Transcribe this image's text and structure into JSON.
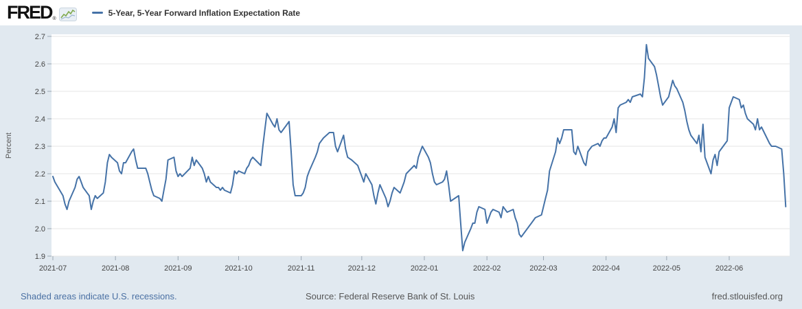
{
  "header": {
    "logo_text": "FRED",
    "registered_mark": "®",
    "legend_label": "5-Year, 5-Year Forward Inflation Expectation Rate"
  },
  "footer": {
    "recession_note": "Shaded areas indicate U.S. recessions.",
    "source": "Source: Federal Reserve Bank of St. Louis",
    "site": "fred.stlouisfed.org"
  },
  "colors": {
    "background": "#e1e9f0",
    "plot_background": "#ffffff",
    "line": "#4572a7",
    "gridline": "#e6e6e6",
    "tick": "#9aa6b2",
    "axis_text": "#444444",
    "link": "#4a70a3",
    "source_text": "#555555"
  },
  "chart_data": {
    "type": "line",
    "title": "5-Year, 5-Year Forward Inflation Expectation Rate",
    "xlabel": "",
    "ylabel": "Percent",
    "ylim": [
      1.9,
      2.7
    ],
    "grid": true,
    "legend_position": "top-left-header",
    "y_ticks": [
      1.9,
      2.0,
      2.1,
      2.2,
      2.3,
      2.4,
      2.5,
      2.6,
      2.7
    ],
    "x_ticks": [
      {
        "label": "2021-07",
        "day": 0
      },
      {
        "label": "2021-08",
        "day": 31
      },
      {
        "label": "2021-09",
        "day": 62
      },
      {
        "label": "2021-10",
        "day": 92
      },
      {
        "label": "2021-11",
        "day": 123
      },
      {
        "label": "2021-12",
        "day": 153
      },
      {
        "label": "2022-01",
        "day": 184
      },
      {
        "label": "2022-02",
        "day": 215
      },
      {
        "label": "2022-03",
        "day": 243
      },
      {
        "label": "2022-04",
        "day": 274
      },
      {
        "label": "2022-05",
        "day": 304
      },
      {
        "label": "2022-06",
        "day": 335
      }
    ],
    "start_date": "2021-07-01",
    "points": [
      [
        "2021-07-01",
        2.19
      ],
      [
        "2021-07-02",
        2.17
      ],
      [
        "2021-07-06",
        2.12
      ],
      [
        "2021-07-07",
        2.09
      ],
      [
        "2021-07-08",
        2.07
      ],
      [
        "2021-07-09",
        2.1
      ],
      [
        "2021-07-12",
        2.15
      ],
      [
        "2021-07-13",
        2.18
      ],
      [
        "2021-07-14",
        2.19
      ],
      [
        "2021-07-15",
        2.17
      ],
      [
        "2021-07-16",
        2.15
      ],
      [
        "2021-07-19",
        2.12
      ],
      [
        "2021-07-20",
        2.07
      ],
      [
        "2021-07-21",
        2.1
      ],
      [
        "2021-07-22",
        2.12
      ],
      [
        "2021-07-23",
        2.11
      ],
      [
        "2021-07-26",
        2.13
      ],
      [
        "2021-07-27",
        2.17
      ],
      [
        "2021-07-28",
        2.24
      ],
      [
        "2021-07-29",
        2.27
      ],
      [
        "2021-07-30",
        2.26
      ],
      [
        "2021-08-02",
        2.24
      ],
      [
        "2021-08-03",
        2.21
      ],
      [
        "2021-08-04",
        2.2
      ],
      [
        "2021-08-05",
        2.24
      ],
      [
        "2021-08-06",
        2.24
      ],
      [
        "2021-08-09",
        2.28
      ],
      [
        "2021-08-10",
        2.29
      ],
      [
        "2021-08-11",
        2.25
      ],
      [
        "2021-08-12",
        2.22
      ],
      [
        "2021-08-13",
        2.22
      ],
      [
        "2021-08-16",
        2.22
      ],
      [
        "2021-08-17",
        2.2
      ],
      [
        "2021-08-18",
        2.17
      ],
      [
        "2021-08-19",
        2.14
      ],
      [
        "2021-08-20",
        2.12
      ],
      [
        "2021-08-23",
        2.11
      ],
      [
        "2021-08-24",
        2.1
      ],
      [
        "2021-08-25",
        2.14
      ],
      [
        "2021-08-26",
        2.18
      ],
      [
        "2021-08-27",
        2.25
      ],
      [
        "2021-08-30",
        2.26
      ],
      [
        "2021-08-31",
        2.21
      ],
      [
        "2021-09-01",
        2.19
      ],
      [
        "2021-09-02",
        2.2
      ],
      [
        "2021-09-03",
        2.19
      ],
      [
        "2021-09-07",
        2.22
      ],
      [
        "2021-09-08",
        2.26
      ],
      [
        "2021-09-09",
        2.23
      ],
      [
        "2021-09-10",
        2.25
      ],
      [
        "2021-09-13",
        2.22
      ],
      [
        "2021-09-14",
        2.2
      ],
      [
        "2021-09-15",
        2.17
      ],
      [
        "2021-09-16",
        2.19
      ],
      [
        "2021-09-17",
        2.17
      ],
      [
        "2021-09-20",
        2.15
      ],
      [
        "2021-09-21",
        2.15
      ],
      [
        "2021-09-22",
        2.14
      ],
      [
        "2021-09-23",
        2.15
      ],
      [
        "2021-09-24",
        2.14
      ],
      [
        "2021-09-27",
        2.13
      ],
      [
        "2021-09-28",
        2.16
      ],
      [
        "2021-09-29",
        2.21
      ],
      [
        "2021-09-30",
        2.2
      ],
      [
        "2021-10-01",
        2.21
      ],
      [
        "2021-10-04",
        2.2
      ],
      [
        "2021-10-05",
        2.22
      ],
      [
        "2021-10-06",
        2.23
      ],
      [
        "2021-10-07",
        2.25
      ],
      [
        "2021-10-08",
        2.26
      ],
      [
        "2021-10-12",
        2.23
      ],
      [
        "2021-10-13",
        2.3
      ],
      [
        "2021-10-14",
        2.36
      ],
      [
        "2021-10-15",
        2.42
      ],
      [
        "2021-10-18",
        2.38
      ],
      [
        "2021-10-19",
        2.37
      ],
      [
        "2021-10-20",
        2.4
      ],
      [
        "2021-10-21",
        2.36
      ],
      [
        "2021-10-22",
        2.35
      ],
      [
        "2021-10-25",
        2.38
      ],
      [
        "2021-10-26",
        2.39
      ],
      [
        "2021-10-27",
        2.28
      ],
      [
        "2021-10-28",
        2.16
      ],
      [
        "2021-10-29",
        2.12
      ],
      [
        "2021-11-01",
        2.12
      ],
      [
        "2021-11-02",
        2.13
      ],
      [
        "2021-11-03",
        2.15
      ],
      [
        "2021-11-04",
        2.19
      ],
      [
        "2021-11-05",
        2.21
      ],
      [
        "2021-11-08",
        2.26
      ],
      [
        "2021-11-09",
        2.28
      ],
      [
        "2021-11-10",
        2.31
      ],
      [
        "2021-11-12",
        2.33
      ],
      [
        "2021-11-15",
        2.35
      ],
      [
        "2021-11-16",
        2.35
      ],
      [
        "2021-11-17",
        2.35
      ],
      [
        "2021-11-18",
        2.3
      ],
      [
        "2021-11-19",
        2.28
      ],
      [
        "2021-11-22",
        2.34
      ],
      [
        "2021-11-23",
        2.29
      ],
      [
        "2021-11-24",
        2.26
      ],
      [
        "2021-11-26",
        2.25
      ],
      [
        "2021-11-29",
        2.23
      ],
      [
        "2021-11-30",
        2.21
      ],
      [
        "2021-12-01",
        2.19
      ],
      [
        "2021-12-02",
        2.17
      ],
      [
        "2021-12-03",
        2.2
      ],
      [
        "2021-12-06",
        2.16
      ],
      [
        "2021-12-07",
        2.12
      ],
      [
        "2021-12-08",
        2.09
      ],
      [
        "2021-12-09",
        2.13
      ],
      [
        "2021-12-10",
        2.16
      ],
      [
        "2021-12-13",
        2.11
      ],
      [
        "2021-12-14",
        2.08
      ],
      [
        "2021-12-15",
        2.1
      ],
      [
        "2021-12-16",
        2.13
      ],
      [
        "2021-12-17",
        2.15
      ],
      [
        "2021-12-20",
        2.13
      ],
      [
        "2021-12-21",
        2.15
      ],
      [
        "2021-12-22",
        2.17
      ],
      [
        "2021-12-23",
        2.2
      ],
      [
        "2021-12-27",
        2.23
      ],
      [
        "2021-12-28",
        2.22
      ],
      [
        "2021-12-29",
        2.26
      ],
      [
        "2021-12-30",
        2.28
      ],
      [
        "2021-12-31",
        2.3
      ],
      [
        "2022-01-03",
        2.26
      ],
      [
        "2022-01-04",
        2.24
      ],
      [
        "2022-01-05",
        2.2
      ],
      [
        "2022-01-06",
        2.17
      ],
      [
        "2022-01-07",
        2.16
      ],
      [
        "2022-01-10",
        2.17
      ],
      [
        "2022-01-11",
        2.18
      ],
      [
        "2022-01-12",
        2.21
      ],
      [
        "2022-01-13",
        2.16
      ],
      [
        "2022-01-14",
        2.1
      ],
      [
        "2022-01-18",
        2.12
      ],
      [
        "2022-01-19",
        2.02
      ],
      [
        "2022-01-20",
        1.92
      ],
      [
        "2022-01-21",
        1.95
      ],
      [
        "2022-01-24",
        2.0
      ],
      [
        "2022-01-25",
        2.02
      ],
      [
        "2022-01-26",
        2.02
      ],
      [
        "2022-01-27",
        2.06
      ],
      [
        "2022-01-28",
        2.08
      ],
      [
        "2022-01-31",
        2.07
      ],
      [
        "2022-02-01",
        2.02
      ],
      [
        "2022-02-02",
        2.04
      ],
      [
        "2022-02-03",
        2.06
      ],
      [
        "2022-02-04",
        2.07
      ],
      [
        "2022-02-07",
        2.06
      ],
      [
        "2022-02-08",
        2.04
      ],
      [
        "2022-02-09",
        2.08
      ],
      [
        "2022-02-10",
        2.07
      ],
      [
        "2022-02-11",
        2.06
      ],
      [
        "2022-02-14",
        2.07
      ],
      [
        "2022-02-15",
        2.04
      ],
      [
        "2022-02-16",
        2.02
      ],
      [
        "2022-02-17",
        1.98
      ],
      [
        "2022-02-18",
        1.97
      ],
      [
        "2022-02-22",
        2.01
      ],
      [
        "2022-02-23",
        2.02
      ],
      [
        "2022-02-24",
        2.03
      ],
      [
        "2022-02-25",
        2.04
      ],
      [
        "2022-02-28",
        2.05
      ],
      [
        "2022-03-01",
        2.08
      ],
      [
        "2022-03-02",
        2.11
      ],
      [
        "2022-03-03",
        2.14
      ],
      [
        "2022-03-04",
        2.21
      ],
      [
        "2022-03-07",
        2.28
      ],
      [
        "2022-03-08",
        2.33
      ],
      [
        "2022-03-09",
        2.31
      ],
      [
        "2022-03-10",
        2.33
      ],
      [
        "2022-03-11",
        2.36
      ],
      [
        "2022-03-14",
        2.36
      ],
      [
        "2022-03-15",
        2.36
      ],
      [
        "2022-03-16",
        2.28
      ],
      [
        "2022-03-17",
        2.27
      ],
      [
        "2022-03-18",
        2.3
      ],
      [
        "2022-03-21",
        2.24
      ],
      [
        "2022-03-22",
        2.23
      ],
      [
        "2022-03-23",
        2.28
      ],
      [
        "2022-03-24",
        2.29
      ],
      [
        "2022-03-25",
        2.3
      ],
      [
        "2022-03-28",
        2.31
      ],
      [
        "2022-03-29",
        2.3
      ],
      [
        "2022-03-30",
        2.32
      ],
      [
        "2022-03-31",
        2.33
      ],
      [
        "2022-04-01",
        2.33
      ],
      [
        "2022-04-04",
        2.37
      ],
      [
        "2022-04-05",
        2.4
      ],
      [
        "2022-04-06",
        2.35
      ],
      [
        "2022-04-07",
        2.44
      ],
      [
        "2022-04-08",
        2.45
      ],
      [
        "2022-04-11",
        2.46
      ],
      [
        "2022-04-12",
        2.47
      ],
      [
        "2022-04-13",
        2.46
      ],
      [
        "2022-04-14",
        2.48
      ],
      [
        "2022-04-18",
        2.49
      ],
      [
        "2022-04-19",
        2.48
      ],
      [
        "2022-04-20",
        2.55
      ],
      [
        "2022-04-21",
        2.67
      ],
      [
        "2022-04-22",
        2.62
      ],
      [
        "2022-04-25",
        2.59
      ],
      [
        "2022-04-26",
        2.56
      ],
      [
        "2022-04-27",
        2.52
      ],
      [
        "2022-04-28",
        2.48
      ],
      [
        "2022-04-29",
        2.45
      ],
      [
        "2022-05-02",
        2.48
      ],
      [
        "2022-05-03",
        2.51
      ],
      [
        "2022-05-04",
        2.54
      ],
      [
        "2022-05-05",
        2.52
      ],
      [
        "2022-05-06",
        2.51
      ],
      [
        "2022-05-09",
        2.46
      ],
      [
        "2022-05-10",
        2.43
      ],
      [
        "2022-05-11",
        2.39
      ],
      [
        "2022-05-12",
        2.36
      ],
      [
        "2022-05-13",
        2.34
      ],
      [
        "2022-05-16",
        2.31
      ],
      [
        "2022-05-17",
        2.34
      ],
      [
        "2022-05-18",
        2.28
      ],
      [
        "2022-05-19",
        2.38
      ],
      [
        "2022-05-20",
        2.26
      ],
      [
        "2022-05-23",
        2.2
      ],
      [
        "2022-05-24",
        2.25
      ],
      [
        "2022-05-25",
        2.27
      ],
      [
        "2022-05-26",
        2.23
      ],
      [
        "2022-05-27",
        2.28
      ],
      [
        "2022-05-31",
        2.32
      ],
      [
        "2022-06-01",
        2.44
      ],
      [
        "2022-06-02",
        2.46
      ],
      [
        "2022-06-03",
        2.48
      ],
      [
        "2022-06-06",
        2.47
      ],
      [
        "2022-06-07",
        2.44
      ],
      [
        "2022-06-08",
        2.45
      ],
      [
        "2022-06-09",
        2.42
      ],
      [
        "2022-06-10",
        2.4
      ],
      [
        "2022-06-13",
        2.38
      ],
      [
        "2022-06-14",
        2.36
      ],
      [
        "2022-06-15",
        2.4
      ],
      [
        "2022-06-16",
        2.36
      ],
      [
        "2022-06-17",
        2.37
      ],
      [
        "2022-06-21",
        2.31
      ],
      [
        "2022-06-22",
        2.3
      ],
      [
        "2022-06-23",
        2.3
      ],
      [
        "2022-06-24",
        2.3
      ],
      [
        "2022-06-27",
        2.29
      ],
      [
        "2022-06-28",
        2.2
      ],
      [
        "2022-06-29",
        2.08
      ]
    ]
  }
}
